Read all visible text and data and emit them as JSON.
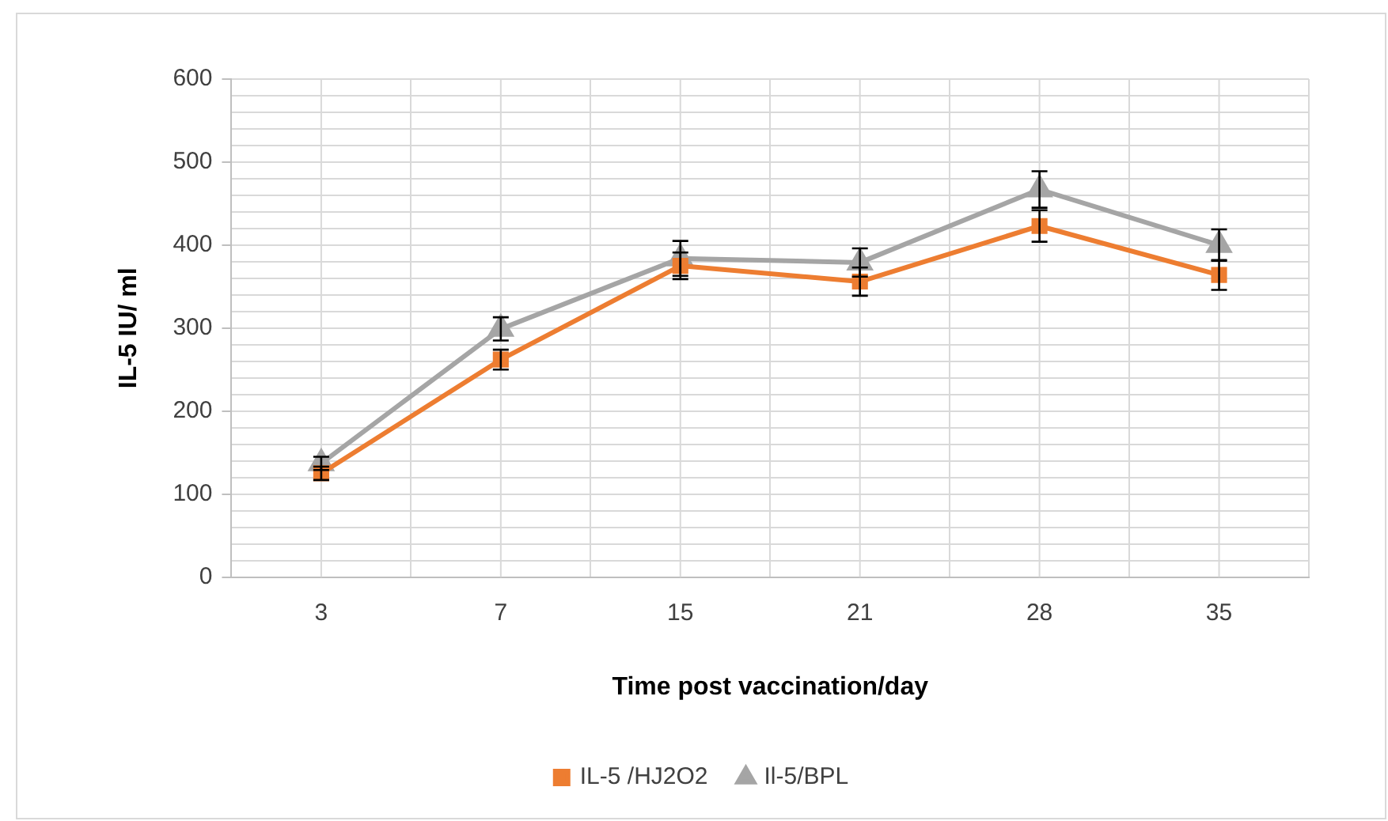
{
  "chart_data": {
    "type": "line",
    "xlabel": "Time post vaccination/day",
    "ylabel": "IL-5 IU/ ml",
    "categories": [
      "3",
      "7",
      "15",
      "21",
      "28",
      "35"
    ],
    "series": [
      {
        "name": "IL-5 /HJ2O2",
        "color": "#ed7d31",
        "marker": "square",
        "values": [
          125,
          262,
          375,
          356,
          423,
          364
        ],
        "errors": [
          8,
          12,
          16,
          17,
          19,
          18
        ]
      },
      {
        "name": "Il-5/BPL",
        "color": "#a5a5a5",
        "marker": "triangle",
        "values": [
          137,
          299,
          384,
          379,
          467,
          400
        ],
        "errors": [
          8,
          14,
          21,
          17,
          22,
          19
        ]
      }
    ],
    "ylim": [
      0,
      600
    ],
    "yticks": [
      0,
      {
        "value": 20,
        "label": null
      },
      {
        "value": 40,
        "label": null
      },
      {
        "value": 60,
        "label": null
      },
      {
        "value": 80,
        "label": null
      },
      100,
      {
        "value": 120,
        "label": null
      },
      {
        "value": 140,
        "label": null
      },
      {
        "value": 160,
        "label": null
      },
      {
        "value": 180,
        "label": null
      },
      200,
      {
        "value": 220,
        "label": null
      },
      {
        "value": 240,
        "label": null
      },
      {
        "value": 260,
        "label": null
      },
      {
        "value": 280,
        "label": null
      },
      300,
      {
        "value": 320,
        "label": null
      },
      {
        "value": 340,
        "label": null
      },
      {
        "value": 360,
        "label": null
      },
      {
        "value": 380,
        "label": null
      },
      400,
      {
        "value": 420,
        "label": null
      },
      {
        "value": 440,
        "label": null
      },
      {
        "value": 460,
        "label": null
      },
      {
        "value": 480,
        "label": null
      },
      500,
      {
        "value": 520,
        "label": null
      },
      {
        "value": 540,
        "label": null
      },
      {
        "value": 560,
        "label": null
      },
      {
        "value": 580,
        "label": null
      },
      600
    ],
    "grid": true,
    "legend": "bottom",
    "line_style": "solid"
  }
}
